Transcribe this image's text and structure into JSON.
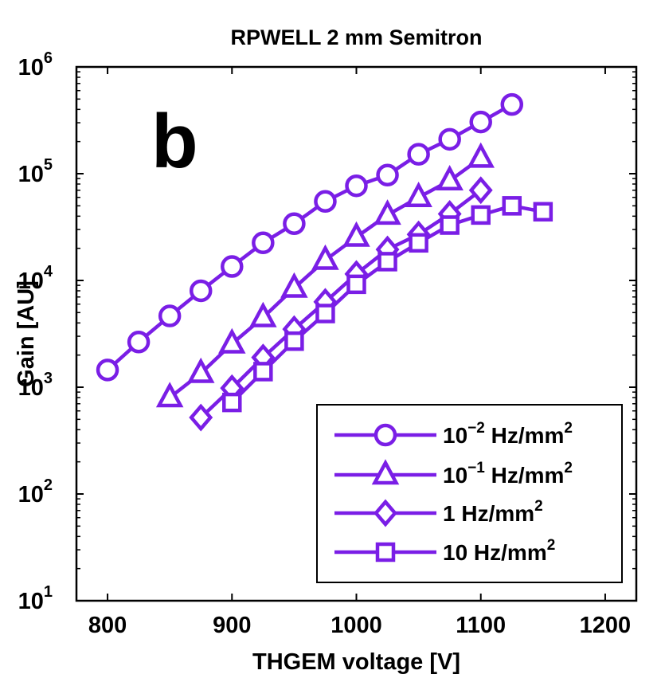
{
  "chart_data": {
    "type": "line",
    "title": "RPWELL 2 mm Semitron",
    "panel_label": "b",
    "xlabel": "THGEM voltage [V]",
    "ylabel": "Gain [AU]",
    "xlim": [
      775,
      1225
    ],
    "ylim": [
      10,
      1000000
    ],
    "yscale": "log",
    "grid": false,
    "legend_position": "bottom-right",
    "x_ticks": [
      "800",
      "900",
      "1000",
      "1100",
      "1200"
    ],
    "y_ticks": [
      {
        "base": "10",
        "exp": "1"
      },
      {
        "base": "10",
        "exp": "2"
      },
      {
        "base": "10",
        "exp": "3"
      },
      {
        "base": "10",
        "exp": "4"
      },
      {
        "base": "10",
        "exp": "5"
      },
      {
        "base": "10",
        "exp": "6"
      }
    ],
    "color": "#7a1ee6",
    "series": [
      {
        "name": "10−2 Hz/mm2",
        "legend_base": "10",
        "legend_exp": "−2",
        "legend_unit": " Hz/mm",
        "legend_unit_exp": "2",
        "marker": "circle",
        "x": [
          800,
          825,
          850,
          875,
          900,
          925,
          950,
          975,
          1000,
          1025,
          1050,
          1075,
          1100,
          1125
        ],
        "y": [
          1450,
          2650,
          4650,
          8000,
          13500,
          22500,
          34000,
          55000,
          77000,
          97000,
          152000,
          210000,
          305000,
          445000
        ]
      },
      {
        "name": "10−1 Hz/mm2",
        "legend_base": "10",
        "legend_exp": "−1",
        "legend_unit": " Hz/mm",
        "legend_unit_exp": "2",
        "marker": "triangle",
        "x": [
          850,
          875,
          900,
          925,
          950,
          975,
          1000,
          1025,
          1050,
          1075,
          1100
        ],
        "y": [
          800,
          1350,
          2550,
          4500,
          8500,
          15500,
          25500,
          41000,
          60000,
          86000,
          140000
        ]
      },
      {
        "name": "1 Hz/mm2",
        "legend_base": "1",
        "legend_exp": "",
        "legend_unit": " Hz/mm",
        "legend_unit_exp": "2",
        "marker": "diamond",
        "x": [
          875,
          900,
          925,
          950,
          975,
          1000,
          1025,
          1050,
          1075,
          1100
        ],
        "y": [
          520,
          980,
          1900,
          3500,
          6300,
          11500,
          19500,
          27000,
          42000,
          70000
        ]
      },
      {
        "name": "10 Hz/mm2",
        "legend_base": "10",
        "legend_exp": "",
        "legend_unit": " Hz/mm",
        "legend_unit_exp": "2",
        "marker": "square",
        "x": [
          900,
          925,
          950,
          975,
          1000,
          1025,
          1050,
          1075,
          1100,
          1125,
          1150
        ],
        "y": [
          720,
          1400,
          2700,
          4900,
          9200,
          15000,
          22500,
          33000,
          41000,
          50000,
          44000
        ]
      }
    ]
  }
}
